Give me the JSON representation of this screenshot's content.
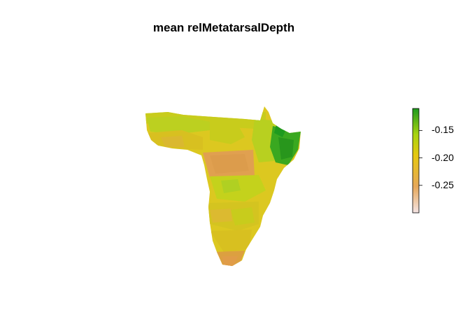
{
  "title": "mean relMetatarsalDepth",
  "legend": {
    "ticks": [
      "-0.15",
      "-0.20",
      "-0.25"
    ],
    "tick_values": [
      -0.15,
      -0.2,
      -0.25
    ],
    "range": [
      -0.3,
      -0.11
    ],
    "colors": [
      "#f0d8d8",
      "#e6a85a",
      "#e6c810",
      "#90d010",
      "#1e9e1e"
    ]
  },
  "map": {
    "fill_colors": {
      "desert_orange": "#e0a050",
      "sahel_yellow": "#dcc820",
      "yellow_green": "#b8d020",
      "east_green": "#3aa820",
      "south_orange": "#dca040"
    }
  }
}
